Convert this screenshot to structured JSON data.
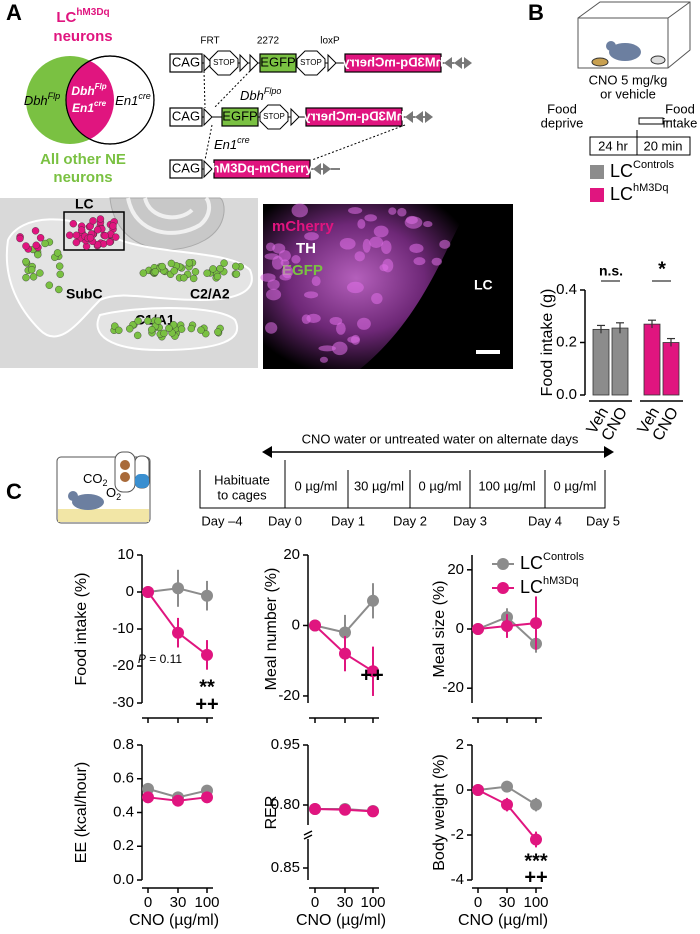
{
  "panel_labels": [
    "A",
    "B",
    "C"
  ],
  "venn": {
    "title": {
      "base": "LC",
      "sup": "hM3Dq"
    },
    "title2": "neurons",
    "left": {
      "base": "Dbh",
      "sup": "Flp"
    },
    "mid_top": {
      "base": "Dbh",
      "sup": "Flp"
    },
    "mid_bottom": {
      "base": "En1",
      "sup": "cre"
    },
    "right": {
      "base": "En1",
      "sup": "cre"
    },
    "footer": [
      "All other NE",
      "neurons"
    ]
  },
  "constructs": {
    "sites": [
      "FRT",
      "2272",
      "loxP"
    ],
    "promoter": "CAG",
    "stop": "STOP",
    "reporter": "EGFP",
    "payload": "hM3Dq-mCherry",
    "recombinases": [
      {
        "base": "Dbh",
        "sup": "Flpo"
      },
      {
        "base": "En1",
        "sup": "cre"
      }
    ]
  },
  "anatomy": [
    "LC",
    "SubC",
    "C2/A2",
    "C1/A1"
  ],
  "micrograph": {
    "channels": [
      "mCherry",
      "TH",
      "EGFP"
    ],
    "label": "LC"
  },
  "panel_b": {
    "dose": [
      "CNO 5 mg/kg",
      "or vehicle"
    ],
    "start": [
      "Food",
      "deprive"
    ],
    "end": [
      "Food",
      "intake"
    ],
    "durations": [
      "24 hr",
      "20 min"
    ]
  },
  "panel_c": {
    "gases": [
      {
        "base": "CO",
        "sub": "2"
      },
      {
        "base": "O",
        "sub": "2"
      }
    ],
    "habituate": [
      "Habituate",
      "to cages"
    ],
    "span": "CNO water or untreated water on alternate days",
    "doses": [
      "0 µg/ml",
      "30 µg/ml",
      "0 µg/ml",
      "100 µg/ml",
      "0 µg/ml"
    ],
    "days": [
      "Day –4",
      "Day 0",
      "Day 1",
      "Day 2",
      "Day 3",
      "Day 4",
      "Day 5"
    ]
  },
  "chart_data": [
    {
      "type": "bar",
      "ylabel": "Food intake (g)",
      "ylim": [
        0,
        0.4
      ],
      "yticks": [
        {
          "value": 0,
          "label": "0.0"
        },
        0.2,
        0.4
      ],
      "categories": [
        "Veh",
        "CNO"
      ],
      "series": [
        {
          "name": "LC",
          "superscript": "Controls",
          "color": "#8c8c8c",
          "values": [
            0.25,
            0.255
          ],
          "errors": [
            0.015,
            0.02
          ]
        },
        {
          "name": "LC",
          "superscript": "hM3Dq",
          "color": "#e0157f",
          "values": [
            0.27,
            0.2
          ],
          "errors": [
            0.015,
            0.015
          ]
        }
      ],
      "annotations": [
        "n.s.",
        "*"
      ]
    },
    {
      "type": "line",
      "ylabel": "Food intake (%)",
      "ylim": [
        -30,
        10
      ],
      "yticks": [
        -30,
        -20,
        -10,
        0,
        10
      ],
      "categories": [
        null,
        null,
        null
      ],
      "series": [
        {
          "color": "#8c8c8c",
          "values": [
            0,
            1,
            -1
          ],
          "errors": [
            0,
            5,
            4
          ]
        },
        {
          "color": "#e0157f",
          "values": [
            0,
            -11,
            -17
          ],
          "errors": [
            0,
            4,
            4
          ]
        }
      ],
      "annotations": [
        {
          "var": "P",
          "rest": " = 0.11"
        },
        "**",
        "++"
      ]
    },
    {
      "type": "line",
      "ylabel": "Meal number (%)",
      "ylim": [
        -22,
        20
      ],
      "yticks": [
        -20,
        0,
        20
      ],
      "categories": [
        null,
        null,
        null
      ],
      "series": [
        {
          "color": "#8c8c8c",
          "values": [
            0,
            -2,
            7
          ],
          "errors": [
            0,
            5,
            5
          ]
        },
        {
          "color": "#e0157f",
          "values": [
            0,
            -8,
            -13
          ],
          "errors": [
            0,
            5,
            7
          ]
        }
      ],
      "annotations": [
        "++"
      ]
    },
    {
      "type": "line",
      "ylabel": "Meal size (%)",
      "ylim": [
        -25,
        25
      ],
      "yticks": [
        -20,
        0,
        20
      ],
      "categories": [
        null,
        null,
        null
      ],
      "legend": true,
      "series": [
        {
          "name": "LC",
          "superscript": "Controls",
          "color": "#8c8c8c",
          "values": [
            0,
            4,
            -5
          ],
          "errors": [
            0,
            3,
            3
          ]
        },
        {
          "name": "LC",
          "superscript": "hM3Dq",
          "color": "#e0157f",
          "values": [
            0,
            1,
            2
          ],
          "errors": [
            0,
            4,
            9
          ]
        }
      ]
    },
    {
      "type": "line",
      "ylabel": "EE (kcal/hour)",
      "xlabel": "CNO (µg/ml)",
      "ylim": [
        0,
        0.8
      ],
      "yticks": [
        {
          "value": 0,
          "label": "0.0"
        },
        0.2,
        0.4,
        0.6,
        0.8
      ],
      "categories": [
        "0",
        "30",
        "100"
      ],
      "series": [
        {
          "color": "#8c8c8c",
          "values": [
            0.54,
            0.49,
            0.53
          ],
          "errors": [
            0.03,
            0.02,
            0.03
          ]
        },
        {
          "color": "#e0157f",
          "values": [
            0.49,
            0.47,
            0.49
          ],
          "errors": [
            0.02,
            0.02,
            0.02
          ]
        }
      ]
    },
    {
      "type": "line",
      "ylabel": "RER",
      "xlabel": "CNO (µg/ml)",
      "ylim": [
        0.75,
        0.95
      ],
      "yticks": [
        {
          "value": 0.8,
          "label": "0.80"
        },
        0.95
      ],
      "axis_break_label": "0.85",
      "categories": [
        "0",
        "30",
        "100"
      ],
      "series": [
        {
          "color": "#8c8c8c",
          "values": [
            0.79,
            0.79,
            0.785
          ],
          "errors": [
            0.005,
            0.005,
            0.004
          ]
        },
        {
          "color": "#e0157f",
          "values": [
            0.79,
            0.788,
            0.784
          ],
          "errors": [
            0.005,
            0.005,
            0.004
          ]
        }
      ]
    },
    {
      "type": "line",
      "ylabel": "Body weight (%)",
      "xlabel": "CNO (µg/ml)",
      "ylim": [
        -4,
        2
      ],
      "yticks": [
        -4,
        -2,
        0,
        2
      ],
      "categories": [
        "0",
        "30",
        "100"
      ],
      "series": [
        {
          "color": "#8c8c8c",
          "values": [
            0,
            0.15,
            -0.65
          ],
          "errors": [
            0,
            0.2,
            0.3
          ]
        },
        {
          "color": "#e0157f",
          "values": [
            0,
            -0.65,
            -2.2
          ],
          "errors": [
            0,
            0.3,
            0.35
          ]
        }
      ],
      "annotations": [
        "***",
        "++"
      ]
    }
  ]
}
